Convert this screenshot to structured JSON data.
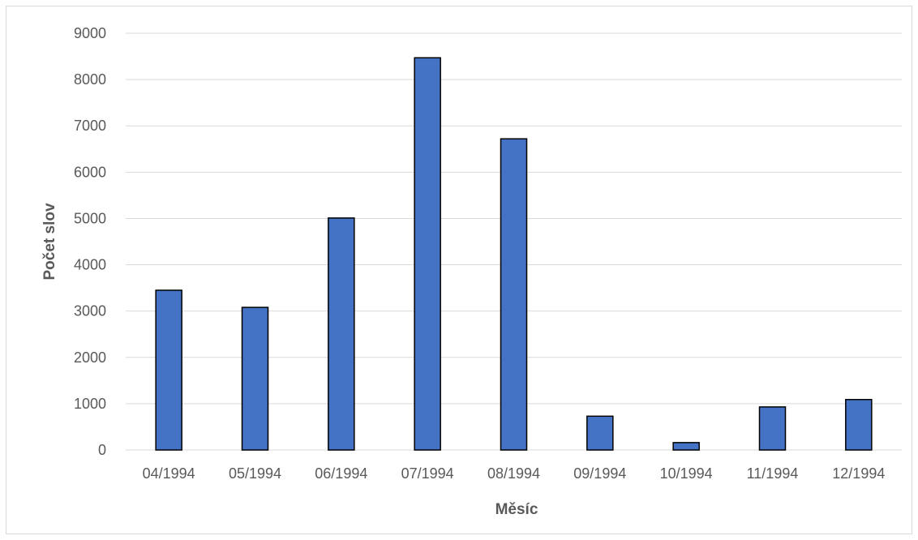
{
  "chart_data": {
    "type": "bar",
    "title": "",
    "xlabel": "Měsíc",
    "ylabel": "Počet slov",
    "categories": [
      "04/1994",
      "05/1994",
      "06/1994",
      "07/1994",
      "08/1994",
      "09/1994",
      "10/1994",
      "11/1994",
      "12/1994"
    ],
    "series": [
      {
        "values": [
          3450,
          3080,
          5010,
          8470,
          6720,
          730,
          160,
          930,
          1090
        ]
      }
    ],
    "ylim": [
      0,
      9000
    ],
    "yticks": [
      0,
      1000,
      2000,
      3000,
      4000,
      5000,
      6000,
      7000,
      8000,
      9000
    ],
    "grid": true,
    "legend": "none",
    "colors": {
      "bar": "#4472c4",
      "bar_edge": "#000000",
      "grid": "#d9d9d9",
      "text": "#595959"
    }
  }
}
